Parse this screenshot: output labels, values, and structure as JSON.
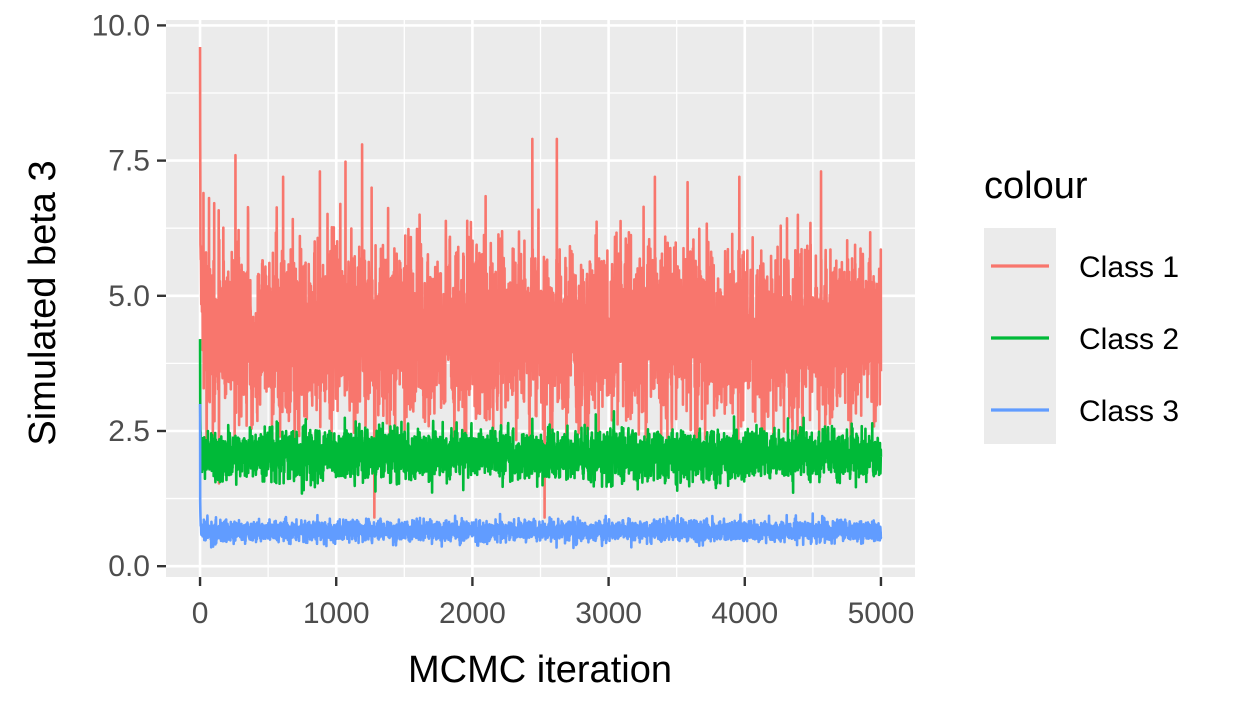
{
  "chart_data": {
    "type": "line",
    "title": "",
    "xlabel": "MCMC iteration",
    "ylabel": "Simulated beta 3",
    "xlim": [
      -250,
      5250
    ],
    "ylim": [
      -0.2,
      10.1
    ],
    "x_ticks": [
      0,
      1000,
      2000,
      3000,
      4000,
      5000
    ],
    "x_tick_labels": [
      "0",
      "1000",
      "2000",
      "3000",
      "4000",
      "5000"
    ],
    "y_ticks": [
      0,
      2.5,
      5,
      7.5,
      10
    ],
    "y_tick_labels": [
      "0.0",
      "2.5",
      "5.0",
      "7.5",
      "10.0"
    ],
    "grid": true,
    "legend": {
      "title": "colour",
      "position": "right"
    },
    "n_iterations": 5000,
    "series": [
      {
        "name": "Class 1",
        "color": "#F8766D",
        "center": 4.3,
        "spread": 1.0,
        "start_value": 9.6,
        "lower_bound": 1.0,
        "upper_bound": 7.9,
        "spikes": [
          {
            "x": 25,
            "y": 6.9
          },
          {
            "x": 260,
            "y": 7.6
          },
          {
            "x": 610,
            "y": 7.2
          },
          {
            "x": 880,
            "y": 7.3
          },
          {
            "x": 1190,
            "y": 7.8
          },
          {
            "x": 1260,
            "y": 7.0
          },
          {
            "x": 2440,
            "y": 7.9
          },
          {
            "x": 2620,
            "y": 7.9
          },
          {
            "x": 3340,
            "y": 7.2
          },
          {
            "x": 3580,
            "y": 7.1
          },
          {
            "x": 3960,
            "y": 7.2
          },
          {
            "x": 4560,
            "y": 7.3
          },
          {
            "x": 1280,
            "y": 0.9
          },
          {
            "x": 2530,
            "y": 0.9
          }
        ]
      },
      {
        "name": "Class 2",
        "color": "#00BA38",
        "center": 2.05,
        "spread": 0.28,
        "start_value": 4.2,
        "lower_bound": 0.9,
        "upper_bound": 3.1,
        "spikes": []
      },
      {
        "name": "Class 3",
        "color": "#619CFF",
        "center": 0.65,
        "spread": 0.12,
        "start_value": 3.0,
        "lower_bound": 0.3,
        "upper_bound": 1.2,
        "spikes": []
      }
    ]
  }
}
